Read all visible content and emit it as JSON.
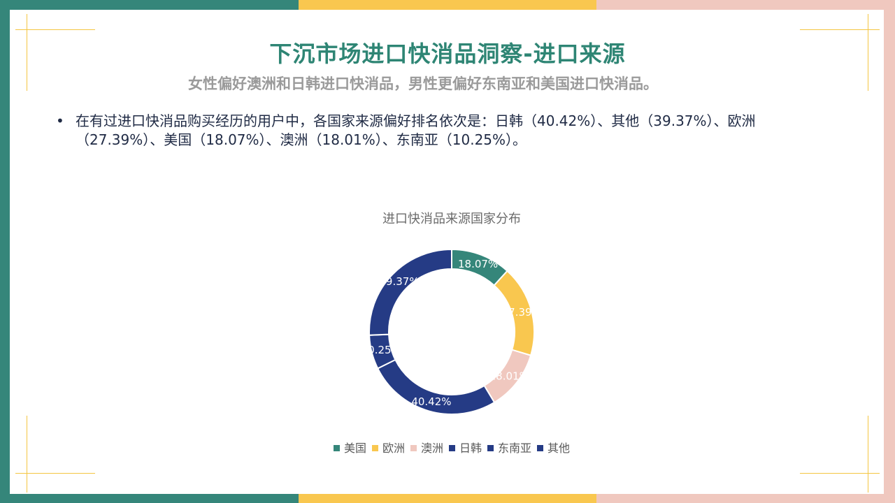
{
  "page": {
    "title": "下沉市场进口快消品洞察-进口来源",
    "subtitle": "女性偏好澳洲和日韩进口快消品，男性更偏好东南亚和美国进口快消品。",
    "bullet_marker": "•",
    "bullet_text": "在有过进口快消品购买经历的用户中，各国家来源偏好排名依次是：日韩（40.42%）、其他（39.37%）、欧洲（27.39%）、美国（18.07%）、澳洲（18.01%）、东南亚（10.25%）。"
  },
  "colors": {
    "teal": "#35867a",
    "yellow": "#f9c74f",
    "pink": "#f0c8bf",
    "navy": "#253b85",
    "title_green": "#2e8574",
    "subtitle_gray": "#9a9a9a",
    "corner_yellow": "#f4c542"
  },
  "chart_data": {
    "type": "pie",
    "style": "donut",
    "title": "进口快消品来源国家分布",
    "labels": [
      "美国",
      "欧洲",
      "澳洲",
      "日韩",
      "东南亚",
      "其他"
    ],
    "values": [
      18.07,
      27.39,
      18.01,
      40.42,
      10.25,
      39.37
    ],
    "value_labels": [
      "18.07%",
      "27.39%",
      "18.01%",
      "40.42%",
      "10.25%",
      "39.37%"
    ],
    "colors": [
      "#35867a",
      "#f9c74f",
      "#f0c8bf",
      "#253b85",
      "#253b85",
      "#253b85"
    ],
    "legend": "bottom"
  }
}
